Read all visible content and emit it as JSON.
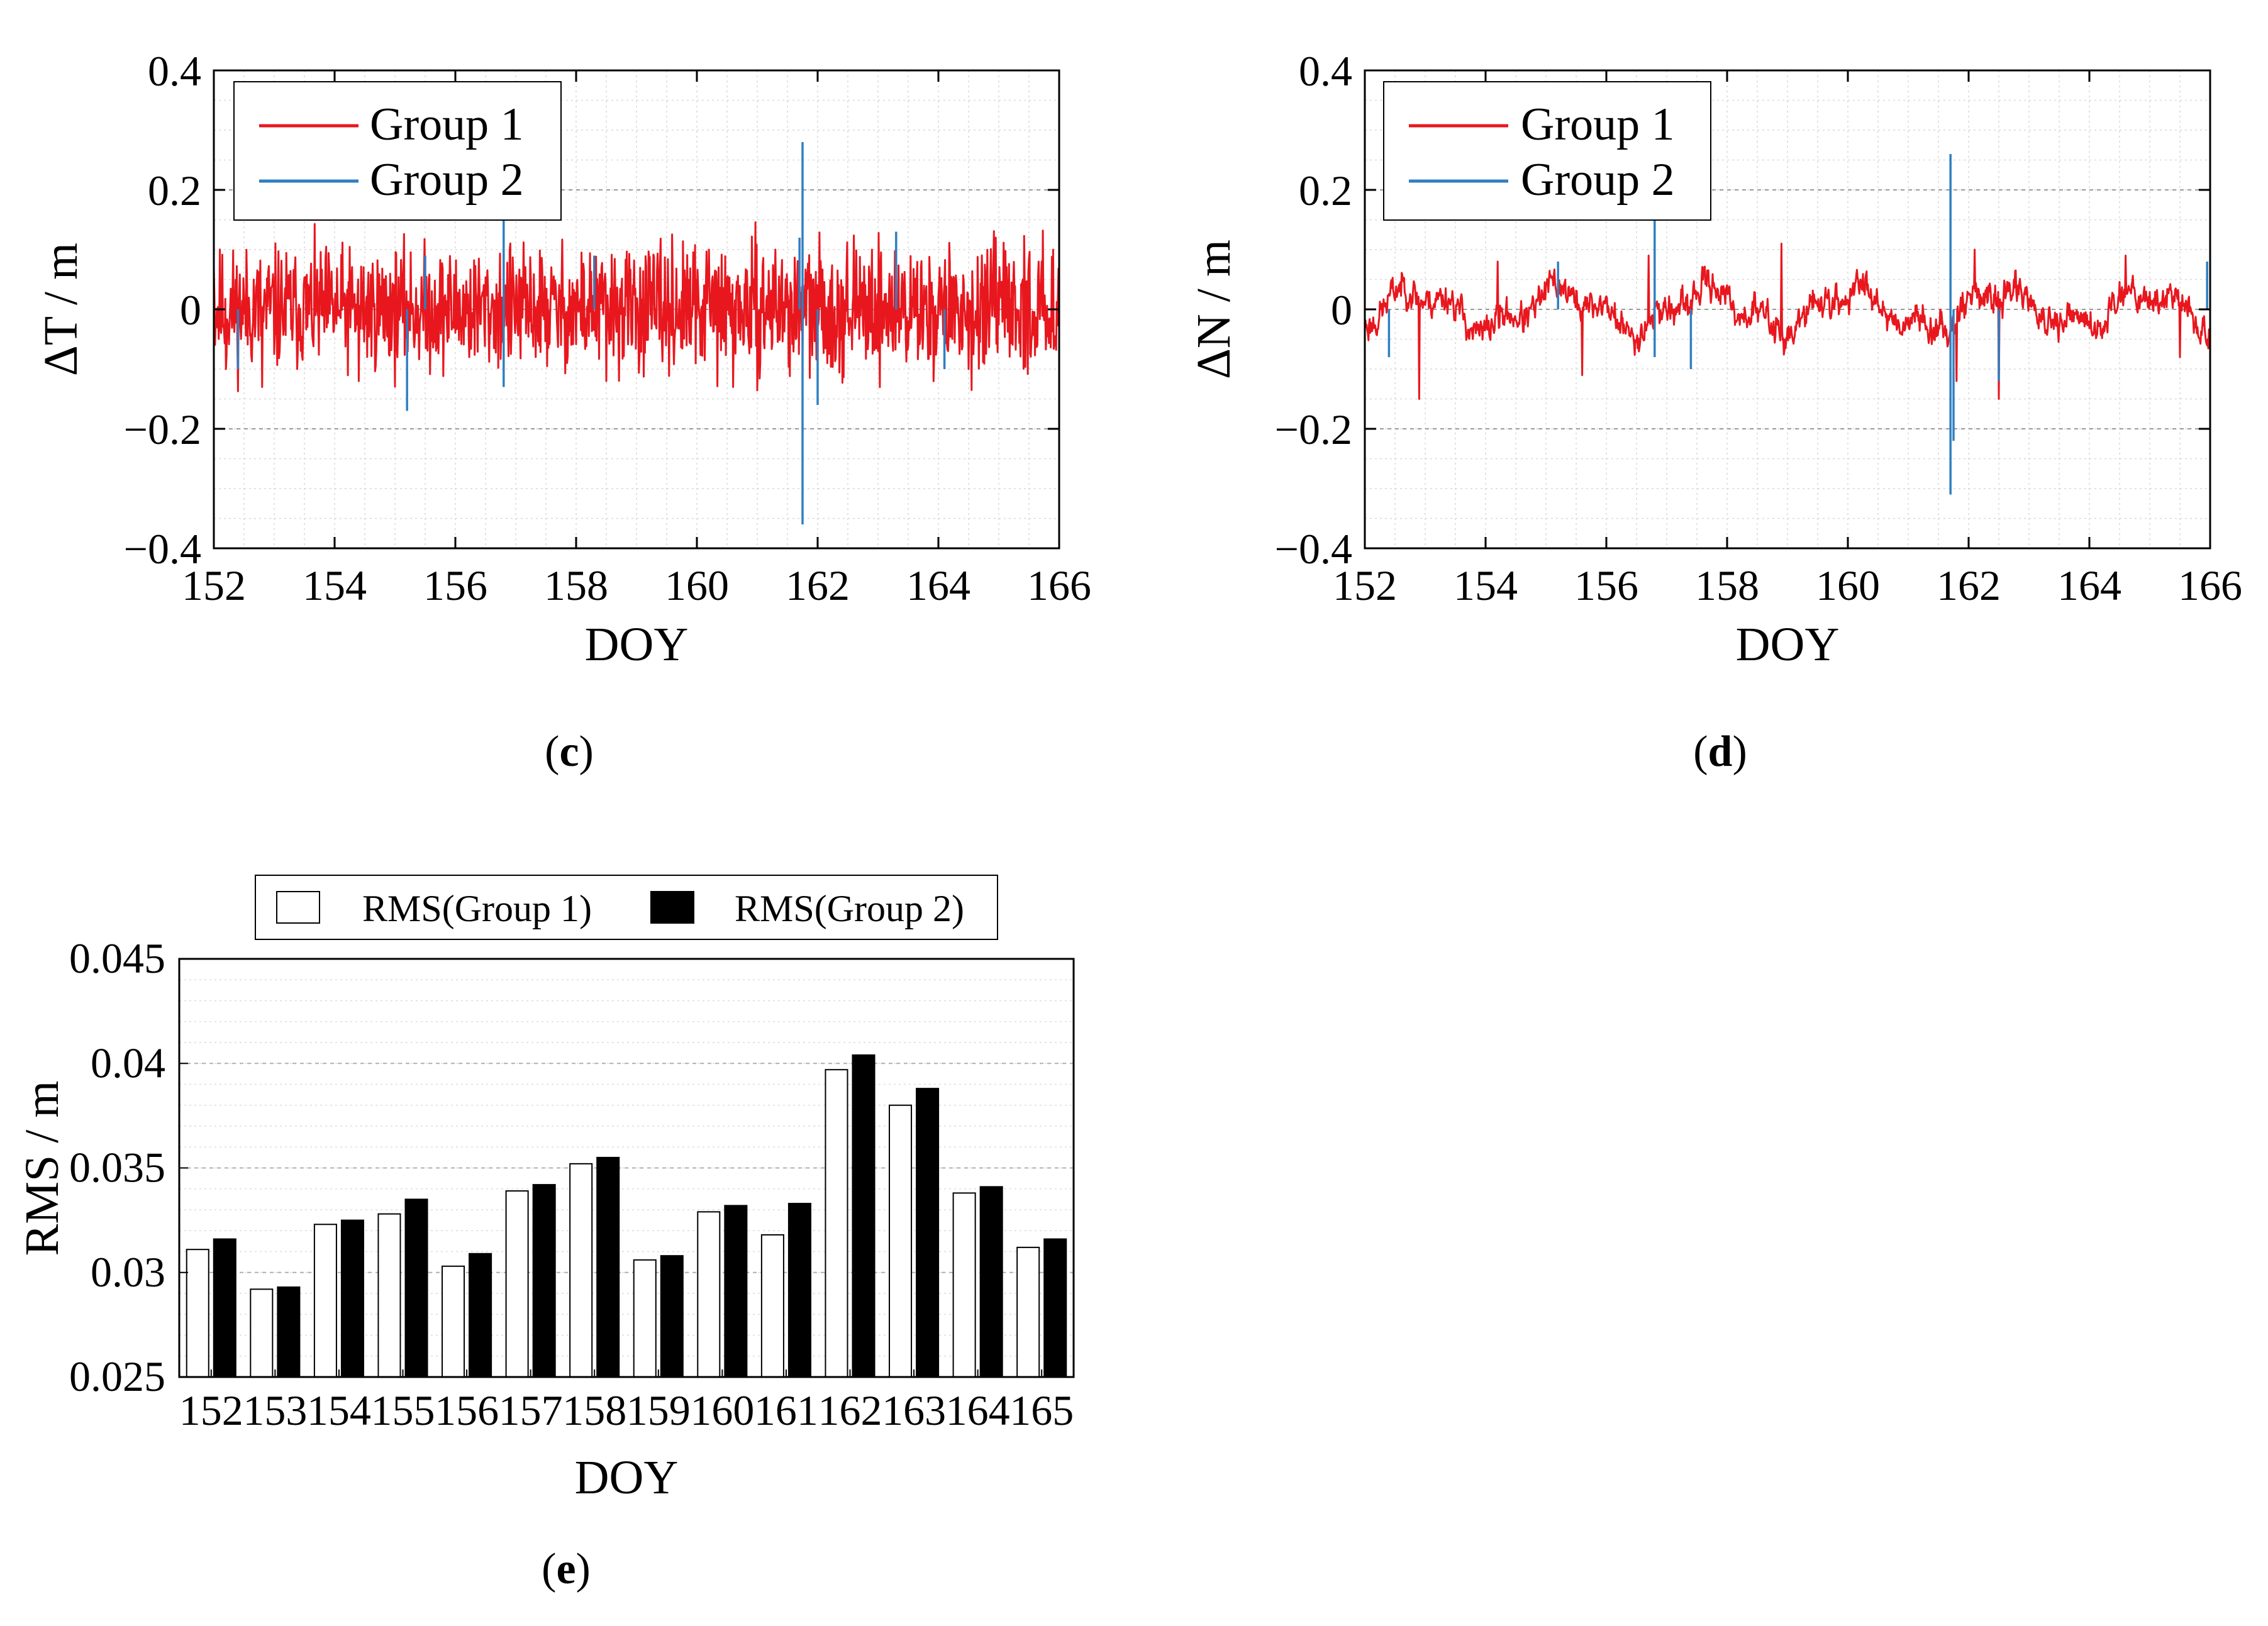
{
  "figure": {
    "panels": [
      {
        "id": "c",
        "label": "c"
      },
      {
        "id": "d",
        "label": "d"
      },
      {
        "id": "e",
        "label": "e"
      }
    ]
  },
  "chart_data": [
    {
      "panel": "c",
      "type": "line",
      "title": "",
      "xlabel": "DOY",
      "ylabel": "ΔT / m",
      "xlim": [
        152,
        166
      ],
      "ylim": [
        -0.4,
        0.4
      ],
      "xticks": [
        152,
        154,
        156,
        158,
        160,
        162,
        164,
        166
      ],
      "xtick_labels": [
        "152",
        "154",
        "156",
        "158",
        "160",
        "162",
        "164",
        "166"
      ],
      "yticks": [
        -0.4,
        -0.2,
        0,
        0.2,
        0.4
      ],
      "ytick_labels": [
        "−0.4",
        "−0.2",
        "0",
        "0.2",
        "0.4"
      ],
      "grid": true,
      "legend": "top-left",
      "series": [
        {
          "name": "Group 1",
          "color": "#e8171e",
          "noise": {
            "amplitude": 0.05,
            "base": 0.0,
            "seed": 11,
            "smooth": false
          },
          "points": [
            [
              152.0,
              0.07
            ],
            [
              152.2,
              -0.1
            ],
            [
              152.8,
              -0.13
            ],
            [
              154.4,
              -0.12
            ],
            [
              156.9,
              0.1
            ],
            [
              158.5,
              -0.12
            ],
            [
              160.2,
              0.1
            ],
            [
              160.6,
              -0.13
            ],
            [
              161.3,
              0.1
            ],
            [
              162.9,
              0.1
            ],
            [
              164.5,
              -0.1
            ],
            [
              165.9,
              0.1
            ]
          ]
        },
        {
          "name": "Group 2",
          "color": "#2f7fc1",
          "points": [
            [
              152.4,
              -0.1
            ],
            [
              155.2,
              -0.17
            ],
            [
              155.5,
              0.09
            ],
            [
              156.8,
              0.18
            ],
            [
              156.8,
              -0.13
            ],
            [
              158.3,
              0.09
            ],
            [
              161.7,
              0.12
            ],
            [
              161.75,
              0.28
            ],
            [
              161.75,
              -0.36
            ],
            [
              162.0,
              -0.16
            ],
            [
              163.3,
              0.13
            ],
            [
              164.1,
              -0.1
            ]
          ]
        }
      ]
    },
    {
      "panel": "d",
      "type": "line",
      "title": "",
      "xlabel": "DOY",
      "ylabel": "ΔN / m",
      "xlim": [
        152,
        166
      ],
      "ylim": [
        -0.4,
        0.4
      ],
      "xticks": [
        152,
        154,
        156,
        158,
        160,
        162,
        164,
        166
      ],
      "xtick_labels": [
        "152",
        "154",
        "156",
        "158",
        "160",
        "162",
        "164",
        "166"
      ],
      "yticks": [
        -0.4,
        -0.2,
        0,
        0.2,
        0.4
      ],
      "ytick_labels": [
        "−0.4",
        "−0.2",
        "0",
        "0.2",
        "0.4"
      ],
      "grid": true,
      "legend": "top-left",
      "series": [
        {
          "name": "Group 1",
          "color": "#e8171e",
          "noise": {
            "amplitude": 0.025,
            "base": 0.0,
            "seed": 23,
            "smooth": true
          },
          "points": [
            [
              152.9,
              -0.15
            ],
            [
              154.2,
              0.08
            ],
            [
              155.6,
              -0.11
            ],
            [
              156.7,
              0.09
            ],
            [
              158.9,
              0.11
            ],
            [
              161.8,
              -0.12
            ],
            [
              162.1,
              0.1
            ],
            [
              162.5,
              -0.15
            ],
            [
              164.6,
              0.09
            ],
            [
              165.5,
              -0.08
            ]
          ]
        },
        {
          "name": "Group 2",
          "color": "#2f7fc1",
          "points": [
            [
              152.4,
              -0.08
            ],
            [
              155.2,
              0.08
            ],
            [
              156.8,
              0.19
            ],
            [
              156.8,
              -0.08
            ],
            [
              157.4,
              -0.1
            ],
            [
              161.7,
              0.26
            ],
            [
              161.7,
              -0.31
            ],
            [
              161.75,
              -0.22
            ],
            [
              162.5,
              -0.12
            ],
            [
              165.95,
              0.08
            ]
          ]
        }
      ]
    },
    {
      "panel": "e",
      "type": "bar",
      "title": "",
      "xlabel": "DOY",
      "ylabel": "RMS / m",
      "ylim": [
        0.025,
        0.045
      ],
      "yticks": [
        0.025,
        0.03,
        0.035,
        0.04,
        0.045
      ],
      "ytick_labels": [
        "0.025",
        "0.03",
        "0.035",
        "0.04",
        "0.045"
      ],
      "grid": true,
      "legend": "top",
      "categories": [
        "152",
        "153",
        "154",
        "155",
        "156",
        "157",
        "158",
        "159",
        "160",
        "161",
        "162",
        "163",
        "164",
        "165"
      ],
      "series": [
        {
          "name": "RMS(Group 1)",
          "fill": "#ffffff",
          "stroke": "#000000",
          "values": [
            0.0311,
            0.0292,
            0.0323,
            0.0328,
            0.0303,
            0.0339,
            0.0352,
            0.0306,
            0.0329,
            0.0318,
            0.0397,
            0.038,
            0.0338,
            0.0312
          ]
        },
        {
          "name": "RMS(Group 2)",
          "fill": "#000000",
          "stroke": "#000000",
          "values": [
            0.0316,
            0.0293,
            0.0325,
            0.0335,
            0.0309,
            0.0342,
            0.0355,
            0.0308,
            0.0332,
            0.0333,
            0.0404,
            0.0388,
            0.0341,
            0.0316
          ]
        }
      ]
    }
  ]
}
